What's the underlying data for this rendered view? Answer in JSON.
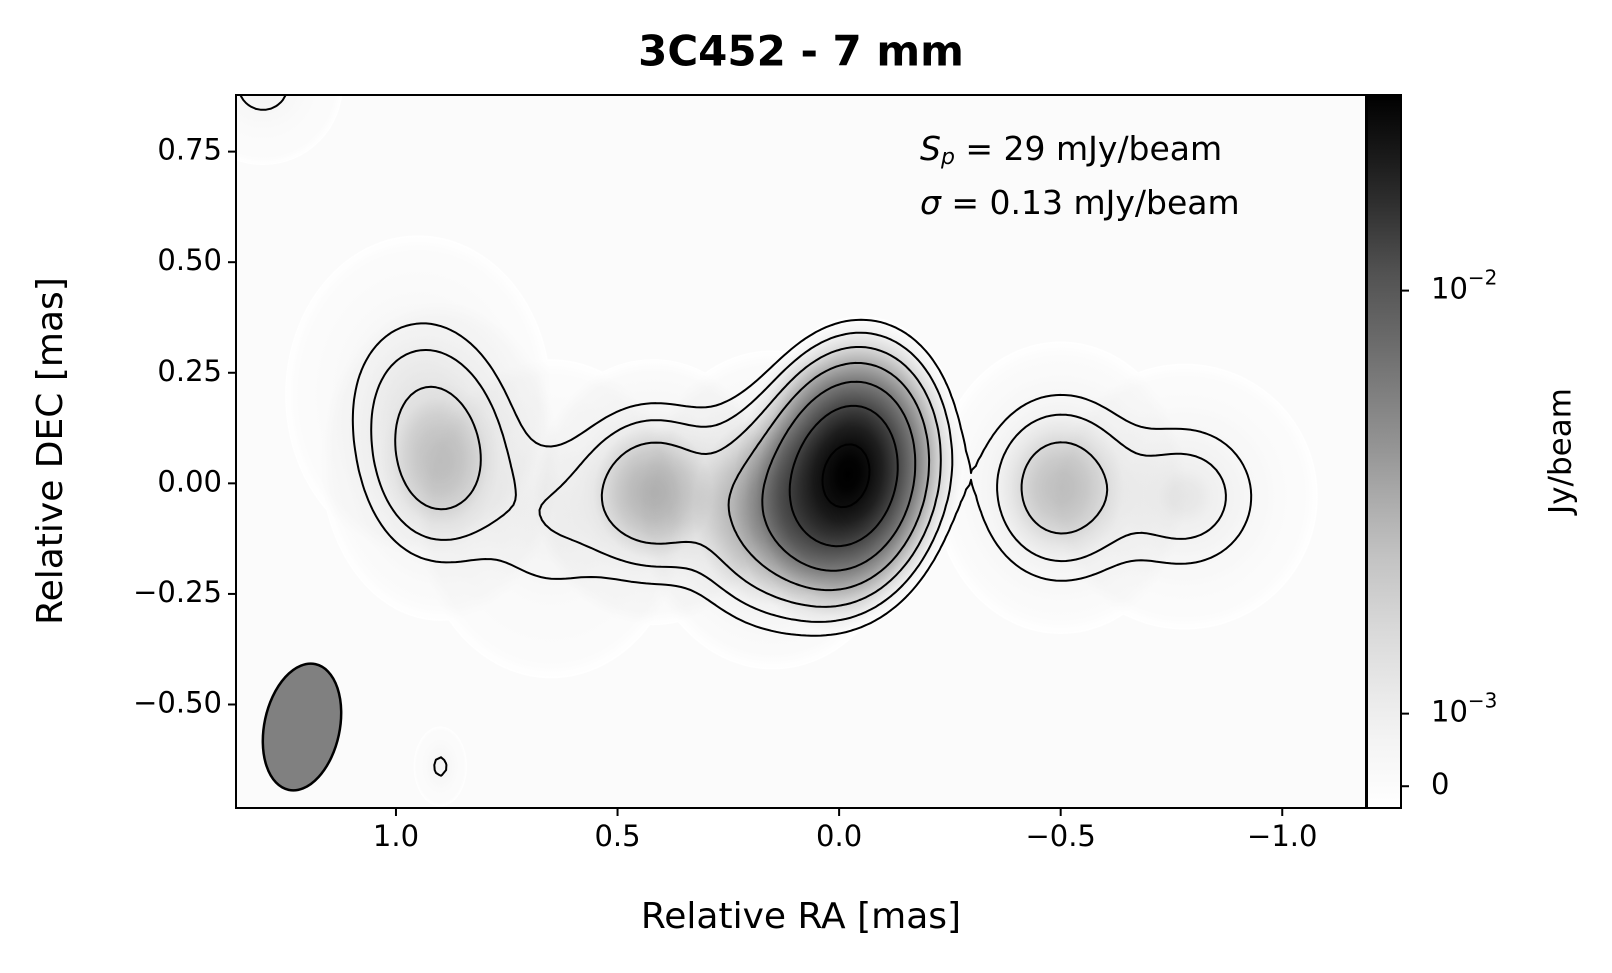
{
  "chart_data": {
    "type": "image",
    "title": "3C452 - 7 mm",
    "title_color": "#d6195b",
    "x_label": "Relative RA [mas]",
    "y_label": "Relative DEC [mas]",
    "colorbar_label": "Jy/beam",
    "annotations": [
      {
        "symbol": "S",
        "sub": "p",
        "text": " = 29 mJy/beam"
      },
      {
        "symbol": "σ",
        "text": " = 0.13 mJy/beam"
      }
    ],
    "xlim": [
      1.361,
      -1.189
    ],
    "ylim": [
      -0.734,
      0.878
    ],
    "xticks": [
      {
        "value": 1.0,
        "label": "1.0"
      },
      {
        "value": 0.5,
        "label": "0.5"
      },
      {
        "value": 0.0,
        "label": "0.0"
      },
      {
        "value": -0.5,
        "label": "−0.5"
      },
      {
        "value": -1.0,
        "label": "−1.0"
      }
    ],
    "yticks": [
      {
        "value": -0.5,
        "label": "−0.50"
      },
      {
        "value": -0.25,
        "label": "−0.25"
      },
      {
        "value": 0.0,
        "label": "0.00"
      },
      {
        "value": 0.25,
        "label": "0.25"
      },
      {
        "value": 0.5,
        "label": "0.50"
      },
      {
        "value": 0.75,
        "label": "0.75"
      }
    ],
    "cbar_lim": [
      -0.0003,
      0.029
    ],
    "cbar_scale": "symlog",
    "cbar_linthresh": 0.001,
    "cbar_ticks": [
      0,
      {
        "value": 0.001,
        "label": "10",
        "exponent": "−3"
      },
      {
        "value": 0.01,
        "label": "10",
        "exponent": "−2"
      }
    ],
    "colormap": "Greys",
    "contour_color": "#000000",
    "contour_levels": [
      0.00039,
      0.00078,
      0.00156,
      0.0031,
      0.0062,
      0.0125,
      0.025
    ],
    "beam": {
      "major": 0.29,
      "minor": 0.17,
      "pa": -12,
      "color": "#808080"
    },
    "components": [
      {
        "ra": -0.02,
        "dec": 0.02,
        "peak": 0.029,
        "smaj": 0.12,
        "smin": 0.085,
        "pa": -10
      },
      {
        "ra": 0.15,
        "dec": -0.06,
        "peak": 0.004,
        "smaj": 0.12,
        "smin": 0.1,
        "pa": 0
      },
      {
        "ra": 0.42,
        "dec": -0.02,
        "peak": 0.0028,
        "smaj": 0.1,
        "smin": 0.09,
        "pa": 0
      },
      {
        "ra": 0.65,
        "dec": -0.08,
        "peak": 0.0007,
        "smaj": 0.12,
        "smin": 0.1,
        "pa": 0
      },
      {
        "ra": 0.9,
        "dec": 0.05,
        "peak": 0.0022,
        "smaj": 0.12,
        "smin": 0.09,
        "pa": 0
      },
      {
        "ra": 0.95,
        "dec": 0.2,
        "peak": 0.0008,
        "smaj": 0.12,
        "smin": 0.1,
        "pa": 0
      },
      {
        "ra": -0.5,
        "dec": -0.01,
        "peak": 0.0024,
        "smaj": 0.11,
        "smin": 0.095,
        "pa": 0
      },
      {
        "ra": -0.78,
        "dec": -0.03,
        "peak": 0.0012,
        "smaj": 0.1,
        "smin": 0.1,
        "pa": 0
      },
      {
        "ra": 0.9,
        "dec": -0.64,
        "peak": 0.0005,
        "smaj": 0.03,
        "smin": 0.02,
        "pa": 0
      },
      {
        "ra": 1.3,
        "dec": 0.9,
        "peak": 0.0006,
        "smaj": 0.06,
        "smin": 0.06,
        "pa": 0
      }
    ]
  }
}
